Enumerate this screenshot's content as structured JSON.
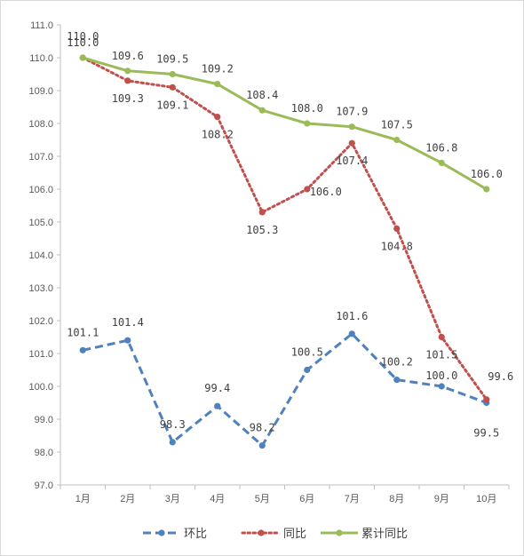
{
  "chart_data": {
    "type": "line",
    "categories": [
      "1月",
      "2月",
      "3月",
      "4月",
      "5月",
      "6月",
      "7月",
      "8月",
      "9月",
      "10月"
    ],
    "ylim": [
      97.0,
      111.0
    ],
    "ytick_step": 1.0,
    "grid": false,
    "legend_position": "bottom",
    "series": [
      {
        "name": "环比",
        "color": "#4f81bd",
        "line_style": "dashed",
        "values": [
          101.1,
          101.4,
          98.3,
          99.4,
          98.2,
          100.5,
          101.6,
          100.2,
          100.0,
          99.5
        ],
        "labels": [
          "101.1",
          "101.4",
          "98.3",
          "99.4",
          "98.2",
          "100.5",
          "101.6",
          "100.2",
          "100.0",
          "99.5"
        ]
      },
      {
        "name": "同比",
        "color": "#c0504d",
        "line_style": "dotted",
        "values": [
          110.0,
          109.3,
          109.1,
          108.2,
          105.3,
          106.0,
          107.4,
          104.8,
          101.5,
          99.6
        ],
        "labels": [
          "110.0",
          "109.3",
          "109.1",
          "108.2",
          "105.3",
          "106.0",
          "107.4",
          "104.8",
          "101.5",
          "99.6"
        ]
      },
      {
        "name": "累计同比",
        "color": "#9bbb59",
        "line_style": "solid",
        "values": [
          110.0,
          109.6,
          109.5,
          109.2,
          108.4,
          108.0,
          107.9,
          107.5,
          106.8,
          106.0
        ],
        "labels": [
          "110.0",
          "109.6",
          "109.5",
          "109.2",
          "108.4",
          "108.0",
          "107.9",
          "107.5",
          "106.8",
          "106.0"
        ]
      }
    ]
  }
}
